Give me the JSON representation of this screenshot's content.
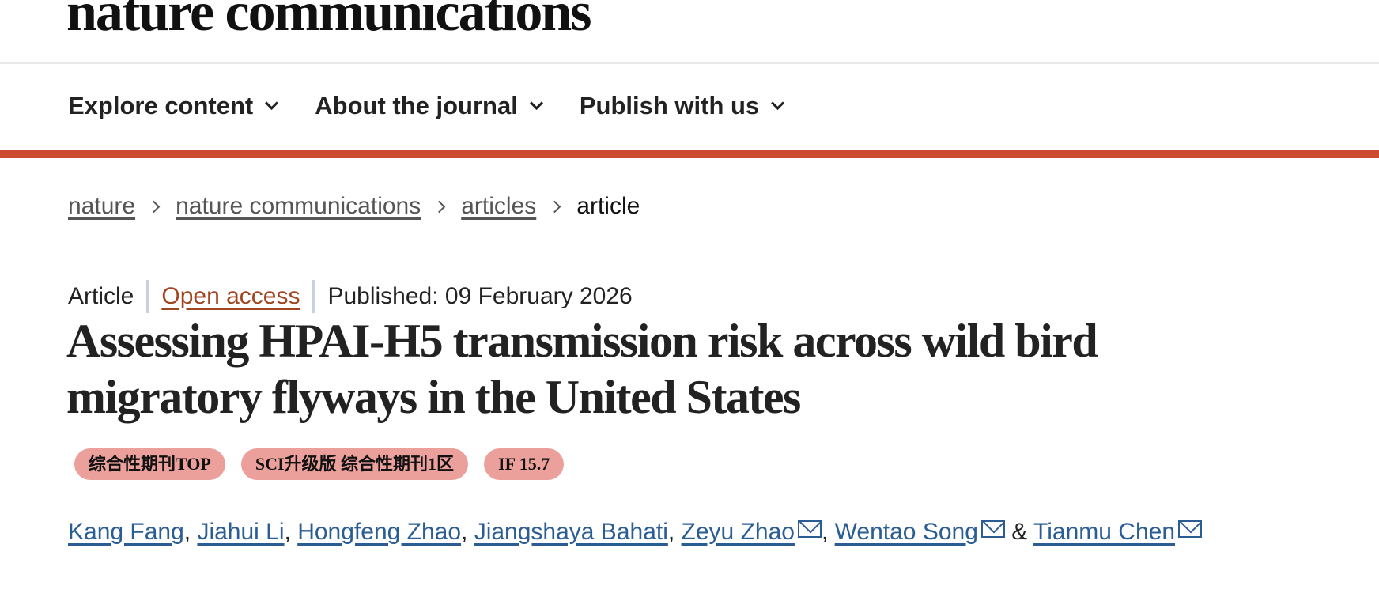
{
  "header": {
    "logo": "nature communications"
  },
  "nav": {
    "items": [
      {
        "label": "Explore content"
      },
      {
        "label": "About the journal"
      },
      {
        "label": "Publish with us"
      }
    ]
  },
  "breadcrumb": {
    "items": [
      "nature",
      "nature communications",
      "articles"
    ],
    "current": "article"
  },
  "article": {
    "type": "Article",
    "access": "Open access",
    "published": "Published: 09 February 2026",
    "title": "Assessing HPAI-H5 transmission risk across wild bird migratory flyways in the United States",
    "badges": [
      "综合性期刊TOP",
      "SCI升级版 综合性期刊1区",
      "IF 15.7"
    ],
    "authors": [
      "Kang Fang",
      "Jiahui Li",
      "Hongfeng Zhao",
      "Jiangshaya Bahati",
      "Zeyu Zhao",
      "Wentao Song",
      "Tianmu Chen"
    ],
    "separators": {
      "comma": ", ",
      "and": " & "
    }
  },
  "colors": {
    "accent": "#cc4b33",
    "link": "#2a5d94",
    "open_access": "#a0451f",
    "badge": "#eba09c"
  }
}
